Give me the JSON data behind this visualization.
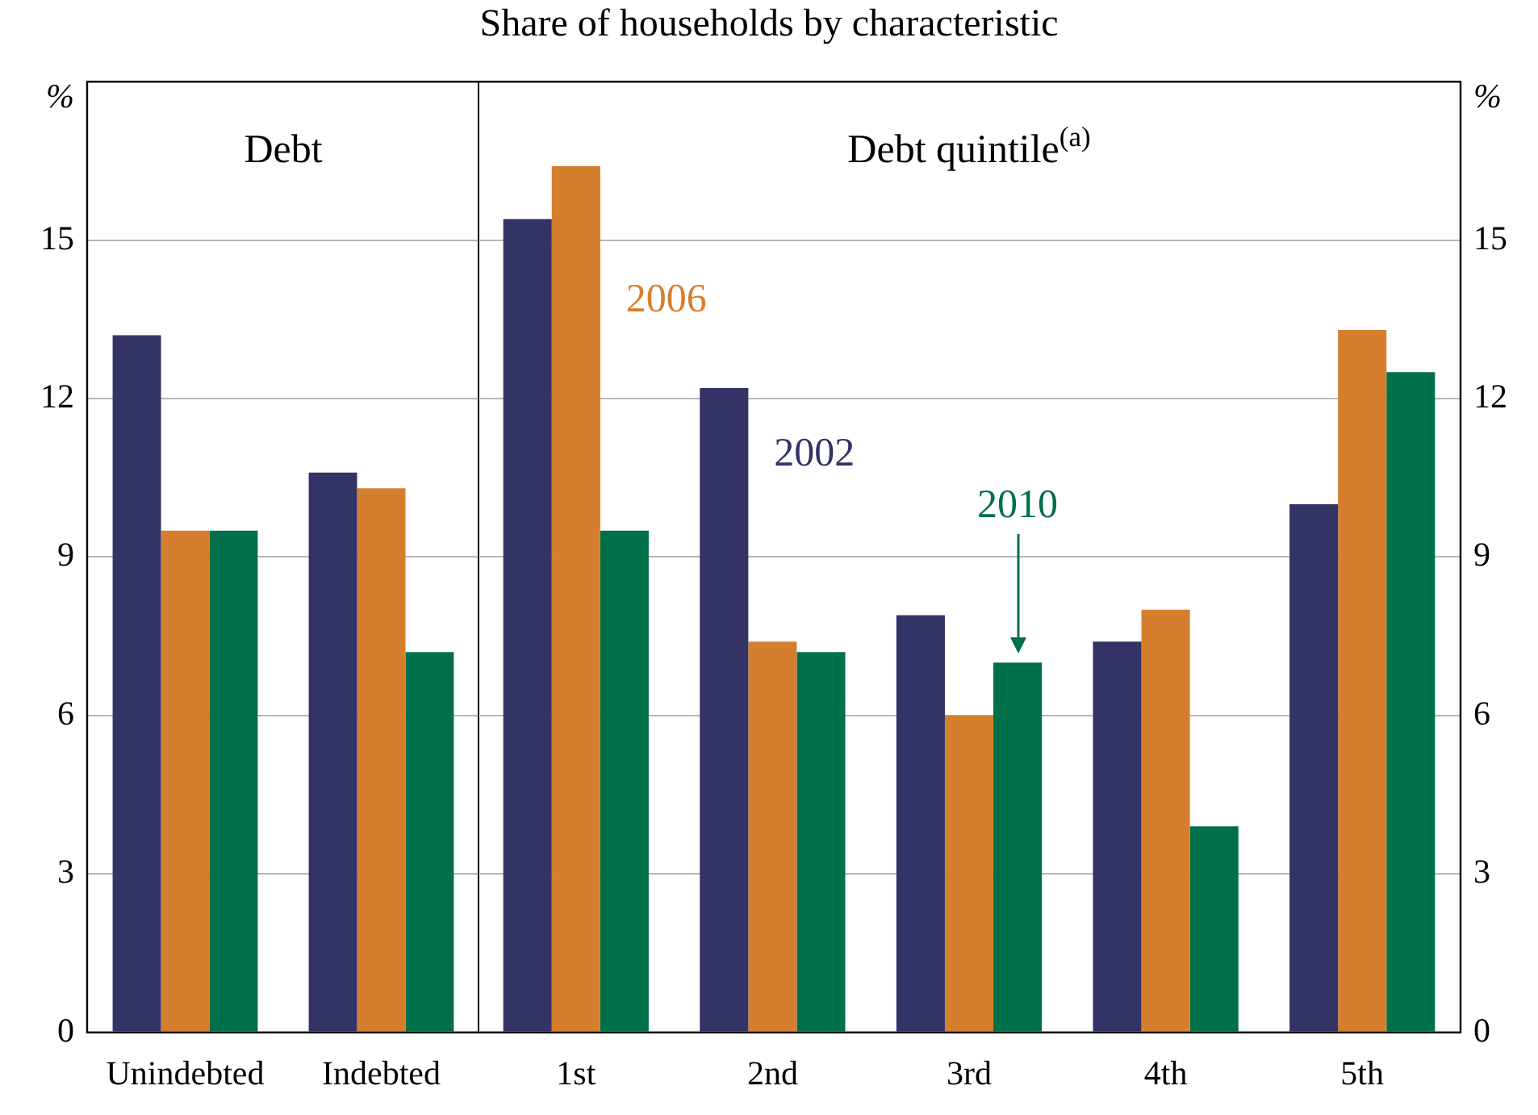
{
  "chart_data": [
    {
      "type": "bar",
      "ylabel": "%",
      "categories": [
        "Unindebted",
        "Indebted"
      ],
      "series": [
        {
          "color": "#333366",
          "values": [
            13.2,
            10.6
          ]
        },
        {
          "color": "#d57f2e",
          "values": [
            9.5,
            10.3
          ]
        },
        {
          "color": "#00704a",
          "values": [
            9.5,
            7.2
          ]
        }
      ],
      "ylim": [
        0,
        18
      ],
      "yticks": [
        0,
        3,
        6,
        9,
        12,
        15
      ],
      "grid": "y",
      "legend": false,
      "annotations": [
        "Debt"
      ]
    },
    {
      "type": "bar",
      "title": "Share of households by characteristic",
      "y2label": "%",
      "categories": [
        "1st",
        "2nd",
        "3rd",
        "4th",
        "5th"
      ],
      "series": [
        {
          "name": "2002",
          "color": "#333366",
          "axis": "y2",
          "values": [
            15.4,
            12.2,
            7.9,
            7.4,
            10.0
          ]
        },
        {
          "name": "2006",
          "color": "#d57f2e",
          "axis": "y2",
          "values": [
            16.4,
            7.4,
            6.0,
            8.0,
            13.3
          ]
        },
        {
          "name": "2010",
          "color": "#00704a",
          "axis": "y2",
          "values": [
            9.5,
            7.2,
            7.0,
            3.9,
            12.5
          ]
        }
      ],
      "y2lim": [
        0,
        18
      ],
      "y2ticks": [
        0,
        3,
        6,
        9,
        12,
        15
      ],
      "grid": "y",
      "legend": false,
      "annotations": [
        "Debt quintile$^{(a)}$"
      ]
    }
  ]
}
